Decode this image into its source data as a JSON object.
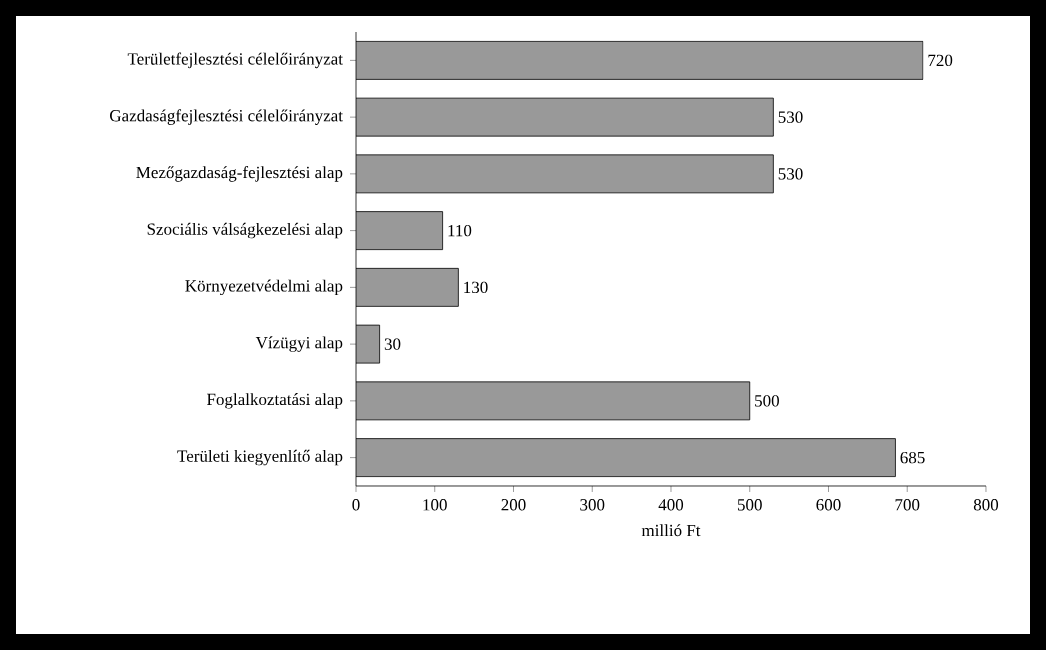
{
  "chart_data": {
    "type": "bar",
    "orientation": "horizontal",
    "xlabel": "millió Ft",
    "categories": [
      "Területfejlesztési célelőirányzat",
      "Gazdaságfejlesztési célelőirányzat",
      "Mezőgazdaság-fejlesztési alap",
      "Szociális válságkezelési alap",
      "Környezetvédelmi alap",
      "Vízügyi alap",
      "Foglalkoztatási alap",
      "Területi kiegyenlítő alap"
    ],
    "values": [
      720,
      530,
      530,
      110,
      130,
      30,
      500,
      685
    ],
    "color": "#999999",
    "xlim": [
      0,
      800
    ],
    "xticks": [
      0,
      100,
      200,
      300,
      400,
      500,
      600,
      700,
      800
    ],
    "data_labels": true,
    "grid": false
  }
}
